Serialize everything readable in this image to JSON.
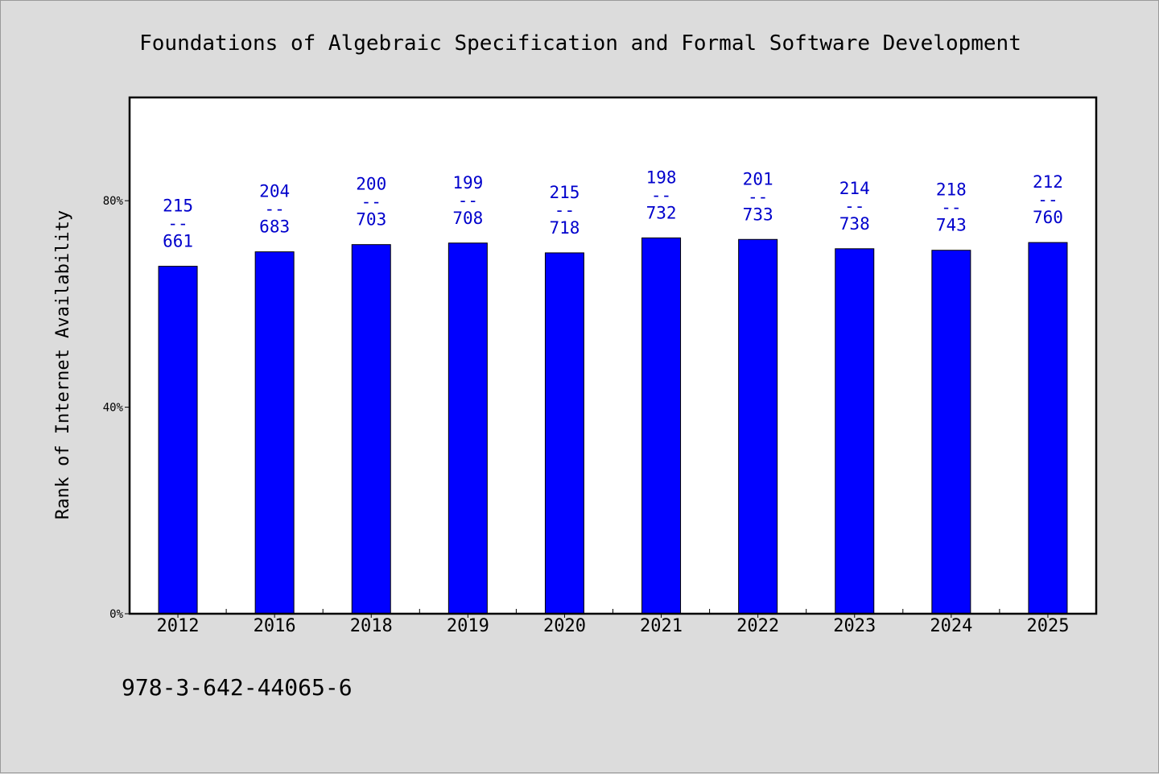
{
  "chart_data": {
    "type": "bar",
    "title": "Foundations of Algebraic Specification and Formal Software Development",
    "ylabel": "Rank of Internet Availability",
    "xlabel": "",
    "ylim": [
      0,
      100
    ],
    "yticks": [
      "0%",
      "40%",
      "80%"
    ],
    "categories": [
      "2012",
      "2016",
      "2018",
      "2019",
      "2020",
      "2021",
      "2022",
      "2023",
      "2024",
      "2025"
    ],
    "values": [
      67.3,
      70.1,
      71.5,
      71.8,
      69.9,
      72.8,
      72.5,
      70.7,
      70.4,
      71.9
    ],
    "labels_top": [
      "215",
      "204",
      "200",
      "199",
      "215",
      "198",
      "201",
      "214",
      "218",
      "212"
    ],
    "labels_sep": "--",
    "labels_bottom": [
      "661",
      "683",
      "703",
      "708",
      "718",
      "732",
      "733",
      "738",
      "743",
      "760"
    ],
    "bar_color": "#0000ff",
    "label_color": "#0000cc",
    "plot_background": "#ffffff",
    "background": "#dcdcdc",
    "grid": false,
    "legend": "none"
  },
  "footer": {
    "isbn": "978-3-642-44065-6"
  }
}
